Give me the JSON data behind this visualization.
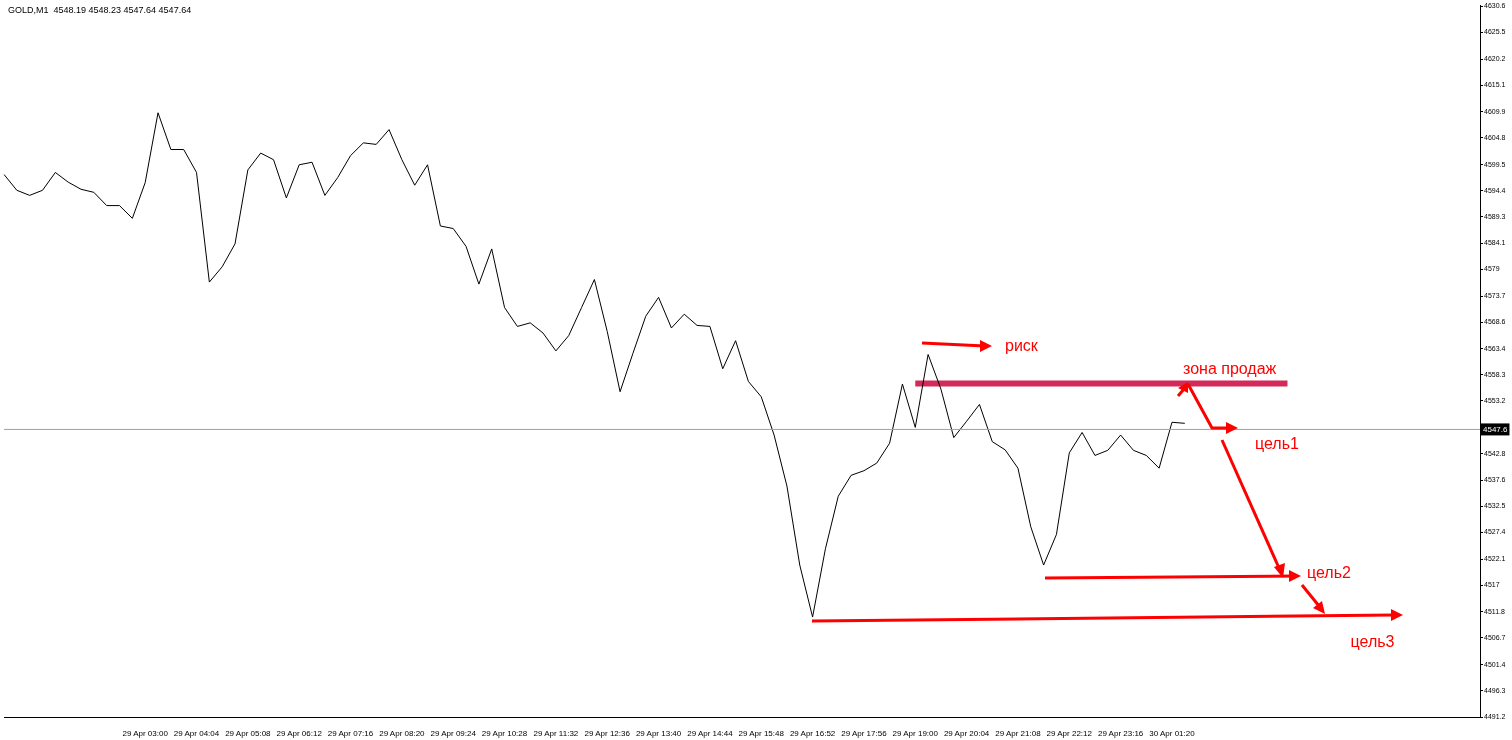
{
  "chart_data": {
    "type": "line",
    "title": "GOLD,M1  4548.19 4548.23 4547.64 4547.64",
    "categories": [
      null,
      null,
      null,
      null,
      null,
      null,
      null,
      null,
      null,
      null,
      null,
      "29 Apr 03:00",
      null,
      null,
      null,
      "29 Apr 04:04",
      null,
      null,
      null,
      "29 Apr 05:08",
      null,
      null,
      null,
      "29 Apr 06:12",
      null,
      null,
      null,
      "29 Apr 07:16",
      null,
      null,
      null,
      "29 Apr 08:20",
      null,
      null,
      null,
      "29 Apr 09:24",
      null,
      null,
      null,
      "29 Apr 10:28",
      null,
      null,
      null,
      "29 Apr 11:32",
      null,
      null,
      null,
      "29 Apr 12:36",
      null,
      null,
      null,
      "29 Apr 13:40",
      null,
      null,
      null,
      "29 Apr 14:44",
      null,
      null,
      null,
      "29 Apr 15:48",
      null,
      null,
      null,
      "29 Apr 16:52",
      null,
      null,
      null,
      "29 Apr 17:56",
      null,
      null,
      null,
      "29 Apr 19:00",
      null,
      null,
      null,
      "29 Apr 20:04",
      null,
      null,
      null,
      "29 Apr 21:08",
      null,
      null,
      null,
      "29 Apr 22:12",
      null,
      null,
      null,
      "29 Apr 23:16",
      null,
      null,
      null,
      "30 Apr 01:20",
      null,
      null,
      null,
      null,
      null,
      null,
      null,
      null,
      null,
      null,
      null,
      null,
      null,
      null,
      null,
      null,
      null,
      null,
      null,
      null,
      null,
      null,
      null,
      null
    ],
    "ylim": [
      4491.2,
      4630.8
    ],
    "yticks": [
      4491.2,
      4496.3,
      4501.4,
      4506.7,
      4511.8,
      4517.0,
      4522.1,
      4527.4,
      4532.5,
      4537.6,
      4542.8,
      4553.2,
      4558.3,
      4563.4,
      4568.6,
      4573.7,
      4579.0,
      4584.1,
      4589.3,
      4594.4,
      4599.5,
      4604.8,
      4609.9,
      4615.1,
      4620.2,
      4625.5,
      4630.6
    ],
    "grid": false,
    "legend": false,
    "series": [
      {
        "color": "#000000",
        "values": [
          4597.6,
          4594.5,
          4593.5,
          4594.5,
          4598.0,
          4596.1,
          4594.7,
          4594.1,
          4591.5,
          4591.5,
          4589.0,
          4596.0,
          4609.7,
          4602.5,
          4602.5,
          4598.0,
          4576.5,
          4579.5,
          4584.0,
          4598.5,
          4601.8,
          4600.5,
          4593.0,
          4599.5,
          4600.0,
          4593.5,
          4597.0,
          4601.3,
          4603.8,
          4603.5,
          4606.4,
          4600.5,
          4595.5,
          4599.5,
          4587.5,
          4587.0,
          4583.5,
          4576.1,
          4583.0,
          4571.5,
          4567.8,
          4568.5,
          4566.5,
          4563.0,
          4566.0,
          4571.5,
          4577.0,
          4566.8,
          4555.0,
          4562.5,
          4569.8,
          4573.5,
          4567.5,
          4570.2,
          4568.0,
          4567.8,
          4559.5,
          4565.0,
          4557.0,
          4554.0,
          4546.5,
          4536.5,
          4521.0,
          4510.8,
          4524.2,
          4534.5,
          4538.6,
          4539.5,
          4541.0,
          4544.9,
          4556.5,
          4548.0,
          4562.3,
          4555.5,
          4546.0,
          4549.2,
          4552.5,
          4545.2,
          4543.6,
          4540.0,
          4528.5,
          4521.0,
          4527.0,
          4543.0,
          4547.0,
          4542.5,
          4543.5,
          4546.5,
          4543.5,
          4542.5,
          4540.0,
          4549.0,
          4548.8,
          null,
          null,
          null,
          null,
          null,
          null,
          null,
          null,
          null,
          null,
          null,
          null,
          null,
          null,
          null,
          null,
          null,
          null,
          null,
          null,
          null,
          null,
          null
        ]
      },
      {
        "color": "#d42a5a",
        "values": [
          null,
          null,
          null,
          null,
          null,
          null,
          null,
          null,
          null,
          null,
          null,
          null,
          null,
          null,
          null,
          null,
          null,
          null,
          null,
          null,
          null,
          null,
          null,
          null,
          null,
          null,
          null,
          null,
          null,
          null,
          null,
          null,
          null,
          null,
          null,
          null,
          null,
          null,
          null,
          null,
          null,
          null,
          null,
          null,
          null,
          null,
          null,
          null,
          null,
          null,
          null,
          null,
          null,
          null,
          null,
          null,
          null,
          null,
          null,
          null,
          null,
          null,
          null,
          null,
          null,
          null,
          null,
          null,
          null,
          null,
          null,
          4556.6,
          4556.6,
          4556.6,
          4556.6,
          4556.6,
          4556.6,
          4556.6,
          4556.6,
          4556.6,
          4556.6,
          4556.6,
          4556.6,
          4556.6,
          4556.6,
          4556.6,
          4556.6,
          4556.6,
          4556.6,
          4556.6,
          4556.6,
          4556.6,
          4556.6,
          4556.6,
          4556.6,
          4556.6,
          4556.6,
          4556.6,
          4556.6,
          4556.6,
          4556.6,
          null,
          null,
          null,
          null,
          null,
          null,
          null,
          null,
          null,
          null,
          null,
          null,
          null,
          null,
          null
        ]
      }
    ],
    "ref_lines": [
      {
        "axis": "y",
        "value": 4547.6,
        "label": "4547.6",
        "color": "#a0a0a0"
      }
    ],
    "annotations": [
      "риск",
      {
        "text": "зона продаж",
        "y": 4556.6
      },
      "цель1",
      "цель2",
      {
        "text": "цель3",
        "x": "29 Apr 16:52",
        "y": 4510.8
      }
    ]
  }
}
